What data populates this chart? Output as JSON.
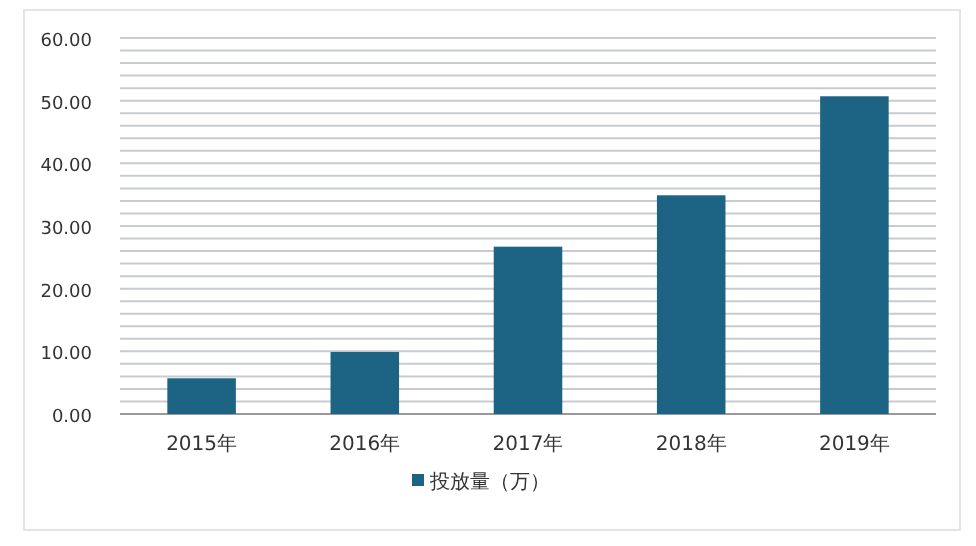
{
  "chart_data": {
    "type": "bar",
    "categories": [
      "2015年",
      "2016年",
      "2017年",
      "2018年",
      "2019年"
    ],
    "series": [
      {
        "name": "投放量（万）",
        "color": "#1d6384",
        "values": [
          5.7,
          9.9,
          26.7,
          34.9,
          50.7
        ]
      }
    ],
    "ylim": [
      0,
      60
    ],
    "yticks": [
      {
        "value": 0,
        "label": "0.00"
      },
      {
        "value": 2,
        "label": null
      },
      {
        "value": 4,
        "label": null
      },
      {
        "value": 6,
        "label": null
      },
      {
        "value": 8,
        "label": null
      },
      {
        "value": 10,
        "label": "10.00"
      },
      {
        "value": 12,
        "label": null
      },
      {
        "value": 14,
        "label": null
      },
      {
        "value": 16,
        "label": null
      },
      {
        "value": 18,
        "label": null
      },
      {
        "value": 20,
        "label": "20.00"
      },
      {
        "value": 22,
        "label": null
      },
      {
        "value": 24,
        "label": null
      },
      {
        "value": 26,
        "label": null
      },
      {
        "value": 28,
        "label": null
      },
      {
        "value": 30,
        "label": "30.00"
      },
      {
        "value": 32,
        "label": null
      },
      {
        "value": 34,
        "label": null
      },
      {
        "value": 36,
        "label": null
      },
      {
        "value": 38,
        "label": null
      },
      {
        "value": 40,
        "label": "40.00"
      },
      {
        "value": 42,
        "label": null
      },
      {
        "value": 44,
        "label": null
      },
      {
        "value": 46,
        "label": null
      },
      {
        "value": 48,
        "label": null
      },
      {
        "value": 50,
        "label": "50.00"
      },
      {
        "value": 52,
        "label": null
      },
      {
        "value": 54,
        "label": null
      },
      {
        "value": 56,
        "label": null
      },
      {
        "value": 58,
        "label": null
      },
      {
        "value": 60,
        "label": "60.00"
      }
    ],
    "grid": "y",
    "legend": "bottom"
  }
}
